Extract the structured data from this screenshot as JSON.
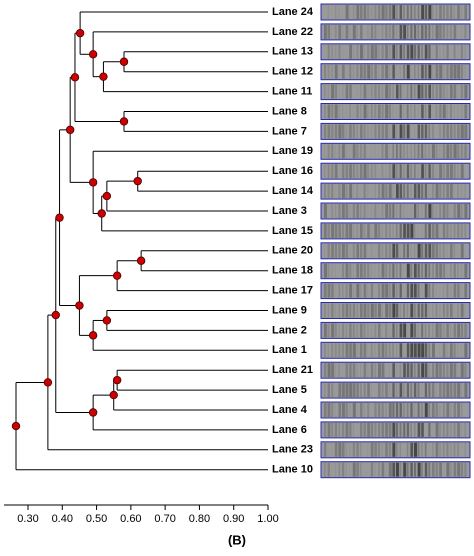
{
  "chart_data": {
    "type": "dendrogram",
    "caption": "(B)",
    "xlim": [
      0.23,
      1.0
    ],
    "xticks": [
      {
        "value": 0.3,
        "label": "0.30"
      },
      {
        "value": 0.4,
        "label": "0.40"
      },
      {
        "value": 0.5,
        "label": "0.50"
      },
      {
        "value": 0.6,
        "label": "0.60"
      },
      {
        "value": 0.7,
        "label": "0.70"
      },
      {
        "value": 0.8,
        "label": "0.80"
      },
      {
        "value": 0.9,
        "label": "0.90"
      },
      {
        "value": 1.0,
        "label": "1.00"
      }
    ],
    "node_color": "#cc0000",
    "tree": {
      "value": 0.265,
      "children": [
        {
          "value": 0.358,
          "children": [
            {
              "value": 0.381,
              "children": [
                {
                  "value": 0.392,
                  "children": [
                    {
                      "value": 0.423,
                      "children": [
                        {
                          "value": 0.437,
                          "children": [
                            {
                              "value": 0.452,
                              "children": [
                                {
                                  "label": "Lane 24"
                                },
                                {
                                  "value": 0.49,
                                  "children": [
                                    {
                                      "label": "Lane 22"
                                    },
                                    {
                                      "value": 0.52,
                                      "children": [
                                        {
                                          "value": 0.58,
                                          "children": [
                                            {
                                              "label": "Lane 13"
                                            },
                                            {
                                              "label": "Lane 12"
                                            }
                                          ]
                                        },
                                        {
                                          "label": "Lane 11"
                                        }
                                      ]
                                    }
                                  ]
                                }
                              ]
                            },
                            {
                              "value": 0.58,
                              "children": [
                                {
                                  "label": "Lane 8"
                                },
                                {
                                  "label": "Lane 7"
                                }
                              ]
                            }
                          ]
                        },
                        {
                          "value": 0.49,
                          "children": [
                            {
                              "label": "Lane 19"
                            },
                            {
                              "value": 0.515,
                              "children": [
                                {
                                  "value": 0.53,
                                  "children": [
                                    {
                                      "value": 0.62,
                                      "children": [
                                        {
                                          "label": "Lane 16"
                                        },
                                        {
                                          "label": "Lane 14"
                                        }
                                      ]
                                    },
                                    {
                                      "label": "Lane 3"
                                    }
                                  ]
                                },
                                {
                                  "label": "Lane 15"
                                }
                              ]
                            }
                          ]
                        }
                      ]
                    },
                    {
                      "value": 0.45,
                      "children": [
                        {
                          "value": 0.56,
                          "children": [
                            {
                              "value": 0.63,
                              "children": [
                                {
                                  "label": "Lane 20"
                                },
                                {
                                  "label": "Lane 18"
                                }
                              ]
                            },
                            {
                              "label": "Lane 17"
                            }
                          ]
                        },
                        {
                          "value": 0.49,
                          "children": [
                            {
                              "value": 0.53,
                              "children": [
                                {
                                  "label": "Lane 9"
                                },
                                {
                                  "label": "Lane 2"
                                }
                              ]
                            },
                            {
                              "label": "Lane 1"
                            }
                          ]
                        }
                      ]
                    }
                  ]
                },
                {
                  "value": 0.49,
                  "children": [
                    {
                      "value": 0.55,
                      "children": [
                        {
                          "value": 0.56,
                          "children": [
                            {
                              "label": "Lane 21"
                            },
                            {
                              "label": "Lane 5"
                            }
                          ]
                        },
                        {
                          "label": "Lane 4"
                        }
                      ]
                    },
                    {
                      "label": "Lane 6"
                    }
                  ]
                }
              ]
            },
            {
              "label": "Lane 23"
            }
          ]
        },
        {
          "label": "Lane 10"
        }
      ]
    }
  }
}
